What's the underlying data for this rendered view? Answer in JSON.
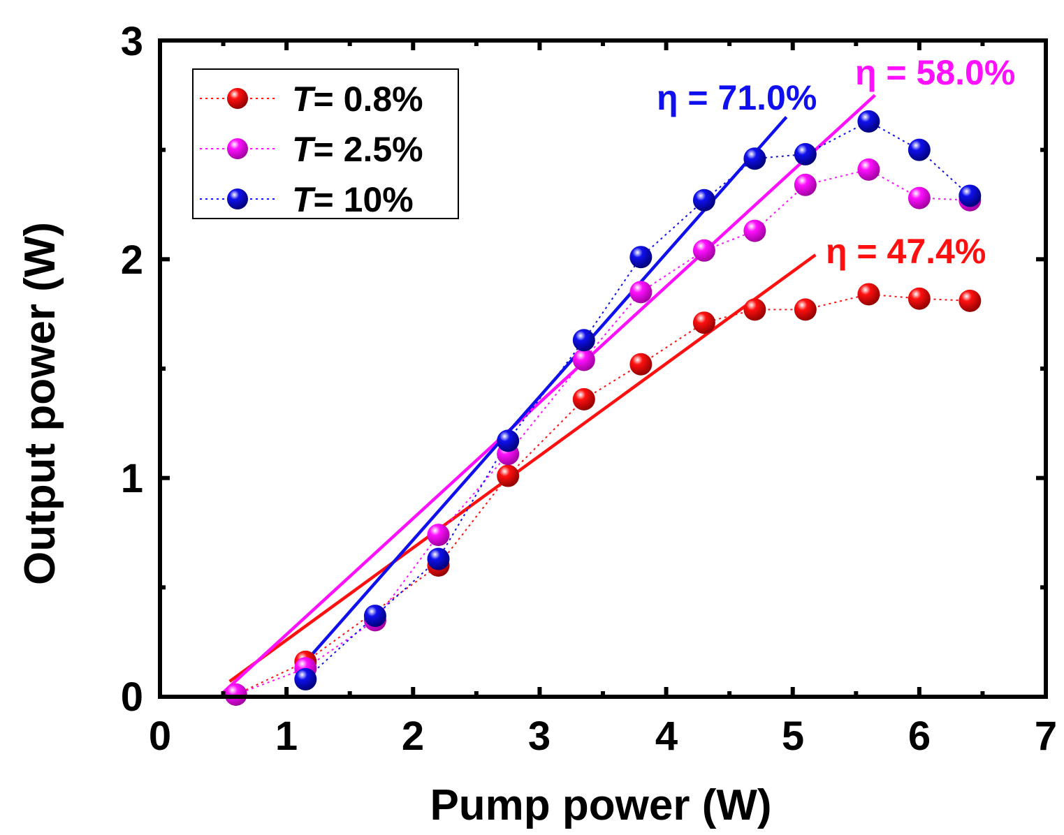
{
  "chart_data": {
    "type": "scatter",
    "xlabel": "Pump power (W)",
    "ylabel": "Output power (W)",
    "xlim": [
      0,
      7
    ],
    "ylim": [
      0,
      3
    ],
    "xticks": [
      0,
      1,
      2,
      3,
      4,
      5,
      6,
      7
    ],
    "xtick_labels": [
      "0",
      "1",
      "2",
      "3",
      "4",
      "5",
      "6",
      "7"
    ],
    "yticks": [
      0,
      1,
      2,
      3
    ],
    "ytick_labels": [
      "0",
      "1",
      "2",
      "3"
    ],
    "legend_position": "top-left",
    "series": [
      {
        "name": "T = 0.8%",
        "legend_prefix": "T",
        "legend_value": "= 0.8%",
        "color": "#ff1010",
        "line_style": "dotted",
        "x": [
          0.6,
          1.15,
          2.2,
          2.75,
          3.35,
          3.8,
          4.3,
          4.7,
          5.1,
          5.6,
          6.0,
          6.4
        ],
        "y": [
          0.01,
          0.16,
          0.6,
          1.01,
          1.36,
          1.52,
          1.71,
          1.77,
          1.77,
          1.84,
          1.82,
          1.81
        ],
        "fit": {
          "x": [
            0.55,
            5.18
          ],
          "y": [
            0.07,
            2.02
          ]
        },
        "efficiency_label": "η = 47.4%"
      },
      {
        "name": "T = 2.5%",
        "legend_prefix": "T",
        "legend_value": "= 2.5%",
        "color": "#ff10ff",
        "line_style": "dotted",
        "x": [
          0.6,
          1.15,
          1.7,
          2.2,
          2.75,
          3.35,
          3.8,
          4.3,
          4.7,
          5.1,
          5.6,
          6.0,
          6.4
        ],
        "y": [
          0.01,
          0.13,
          0.35,
          0.74,
          1.11,
          1.54,
          1.85,
          2.04,
          2.13,
          2.34,
          2.41,
          2.28,
          2.27
        ],
        "fit": {
          "x": [
            0.5,
            5.65
          ],
          "y": [
            0.02,
            2.75
          ]
        },
        "efficiency_label": "η = 58.0%"
      },
      {
        "name": "T = 10%",
        "legend_prefix": "T",
        "legend_value": "= 10%",
        "color": "#1010ee",
        "line_style": "dotted",
        "x": [
          1.15,
          1.7,
          2.2,
          2.75,
          3.35,
          3.8,
          4.3,
          4.7,
          5.1,
          5.6,
          6.0,
          6.4
        ],
        "y": [
          0.08,
          0.37,
          0.63,
          1.17,
          1.63,
          2.01,
          2.27,
          2.46,
          2.48,
          2.63,
          2.5,
          2.29
        ],
        "fit": {
          "x": [
            1.12,
            4.95
          ],
          "y": [
            0.14,
            2.65
          ]
        },
        "efficiency_label": "η = 71.0%"
      }
    ]
  }
}
